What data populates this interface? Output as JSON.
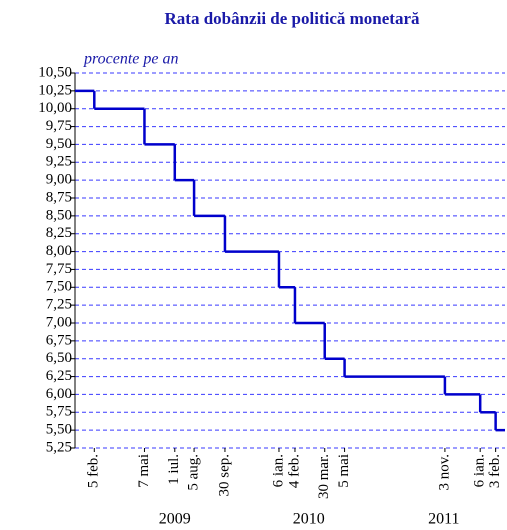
{
  "chart_data": {
    "type": "step",
    "title": "Rata dobânzii de politică monetară",
    "subtitle": "procente pe an",
    "color": "#0000cc",
    "grid": true,
    "x": [
      "2009-01-01",
      "2009-02-05",
      "2009-05-07",
      "2009-07-01",
      "2009-08-05",
      "2009-09-30",
      "2010-01-06",
      "2010-02-04",
      "2010-03-30",
      "2010-05-05",
      "2010-11-03",
      "2011-01-06",
      "2011-02-03"
    ],
    "values": [
      10.25,
      10.0,
      9.5,
      9.0,
      8.5,
      8.0,
      7.5,
      7.0,
      6.5,
      6.25,
      6.0,
      5.75,
      5.5
    ],
    "xlim": [
      "2009-01-01",
      "2011-02-20"
    ],
    "xticks": [
      {
        "value": "2009-02-05",
        "label": "5 feb."
      },
      {
        "value": "2009-05-07",
        "label": "7 mai"
      },
      {
        "value": "2009-07-01",
        "label": "1 iul."
      },
      {
        "value": "2009-08-05",
        "label": "5 aug."
      },
      {
        "value": "2009-09-30",
        "label": "30 sep."
      },
      {
        "value": "2010-01-06",
        "label": "6 ian."
      },
      {
        "value": "2010-02-04",
        "label": "4 feb."
      },
      {
        "value": "2010-03-30",
        "label": "30 mar."
      },
      {
        "value": "2010-05-05",
        "label": "5 mai"
      },
      {
        "value": "2010-11-03",
        "label": "3 nov."
      },
      {
        "value": "2011-01-06",
        "label": "6 ian."
      },
      {
        "value": "2011-02-03",
        "label": "3 feb."
      }
    ],
    "year_ticks": [
      {
        "value": "2009-07-01",
        "label": "2009"
      },
      {
        "value": "2010-03-01",
        "label": "2010"
      },
      {
        "value": "2010-11-01",
        "label": "2011"
      }
    ],
    "ylim": [
      5.25,
      10.5
    ],
    "yticks": [
      {
        "value": 5.25,
        "label": "5,25"
      },
      {
        "value": 5.5,
        "label": "5,50"
      },
      {
        "value": 5.75,
        "label": "5,75"
      },
      {
        "value": 6.0,
        "label": "6,00"
      },
      {
        "value": 6.25,
        "label": "6,25"
      },
      {
        "value": 6.5,
        "label": "6,50"
      },
      {
        "value": 6.75,
        "label": "6,75"
      },
      {
        "value": 7.0,
        "label": "7,00"
      },
      {
        "value": 7.25,
        "label": "7,25"
      },
      {
        "value": 7.5,
        "label": "7,50"
      },
      {
        "value": 7.75,
        "label": "7,75"
      },
      {
        "value": 8.0,
        "label": "8,00"
      },
      {
        "value": 8.25,
        "label": "8,25"
      },
      {
        "value": 8.5,
        "label": "8,50"
      },
      {
        "value": 8.75,
        "label": "8,75"
      },
      {
        "value": 9.0,
        "label": "9,00"
      },
      {
        "value": 9.25,
        "label": "9,25"
      },
      {
        "value": 9.5,
        "label": "9,50"
      },
      {
        "value": 9.75,
        "label": "9,75"
      },
      {
        "value": 10.0,
        "label": "10,00"
      },
      {
        "value": 10.25,
        "label": "10,25"
      },
      {
        "value": 10.5,
        "label": "10,50"
      }
    ]
  }
}
